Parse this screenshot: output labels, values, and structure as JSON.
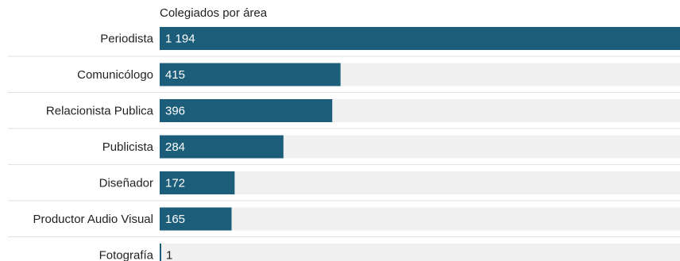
{
  "chart_data": {
    "type": "bar",
    "orientation": "horizontal",
    "title": "Colegiados por área",
    "categories": [
      "Periodista",
      "Comunicólogo",
      "Relacionista Publica",
      "Publicista",
      "Diseñador",
      "Productor Audio Visual",
      "Fotografía"
    ],
    "values": [
      1194,
      415,
      396,
      284,
      172,
      165,
      1
    ],
    "value_labels": [
      "1 194",
      "415",
      "396",
      "284",
      "172",
      "165",
      "1"
    ],
    "xlim": [
      0,
      1194
    ],
    "grid": false,
    "legend": "none",
    "colors": {
      "bar": "#1c5e7a",
      "track": "#f0f0f0",
      "value_text": "#ffffff",
      "value_text_outside": "#222222",
      "label_text": "#222222",
      "separator": "#e2e2e2"
    }
  }
}
